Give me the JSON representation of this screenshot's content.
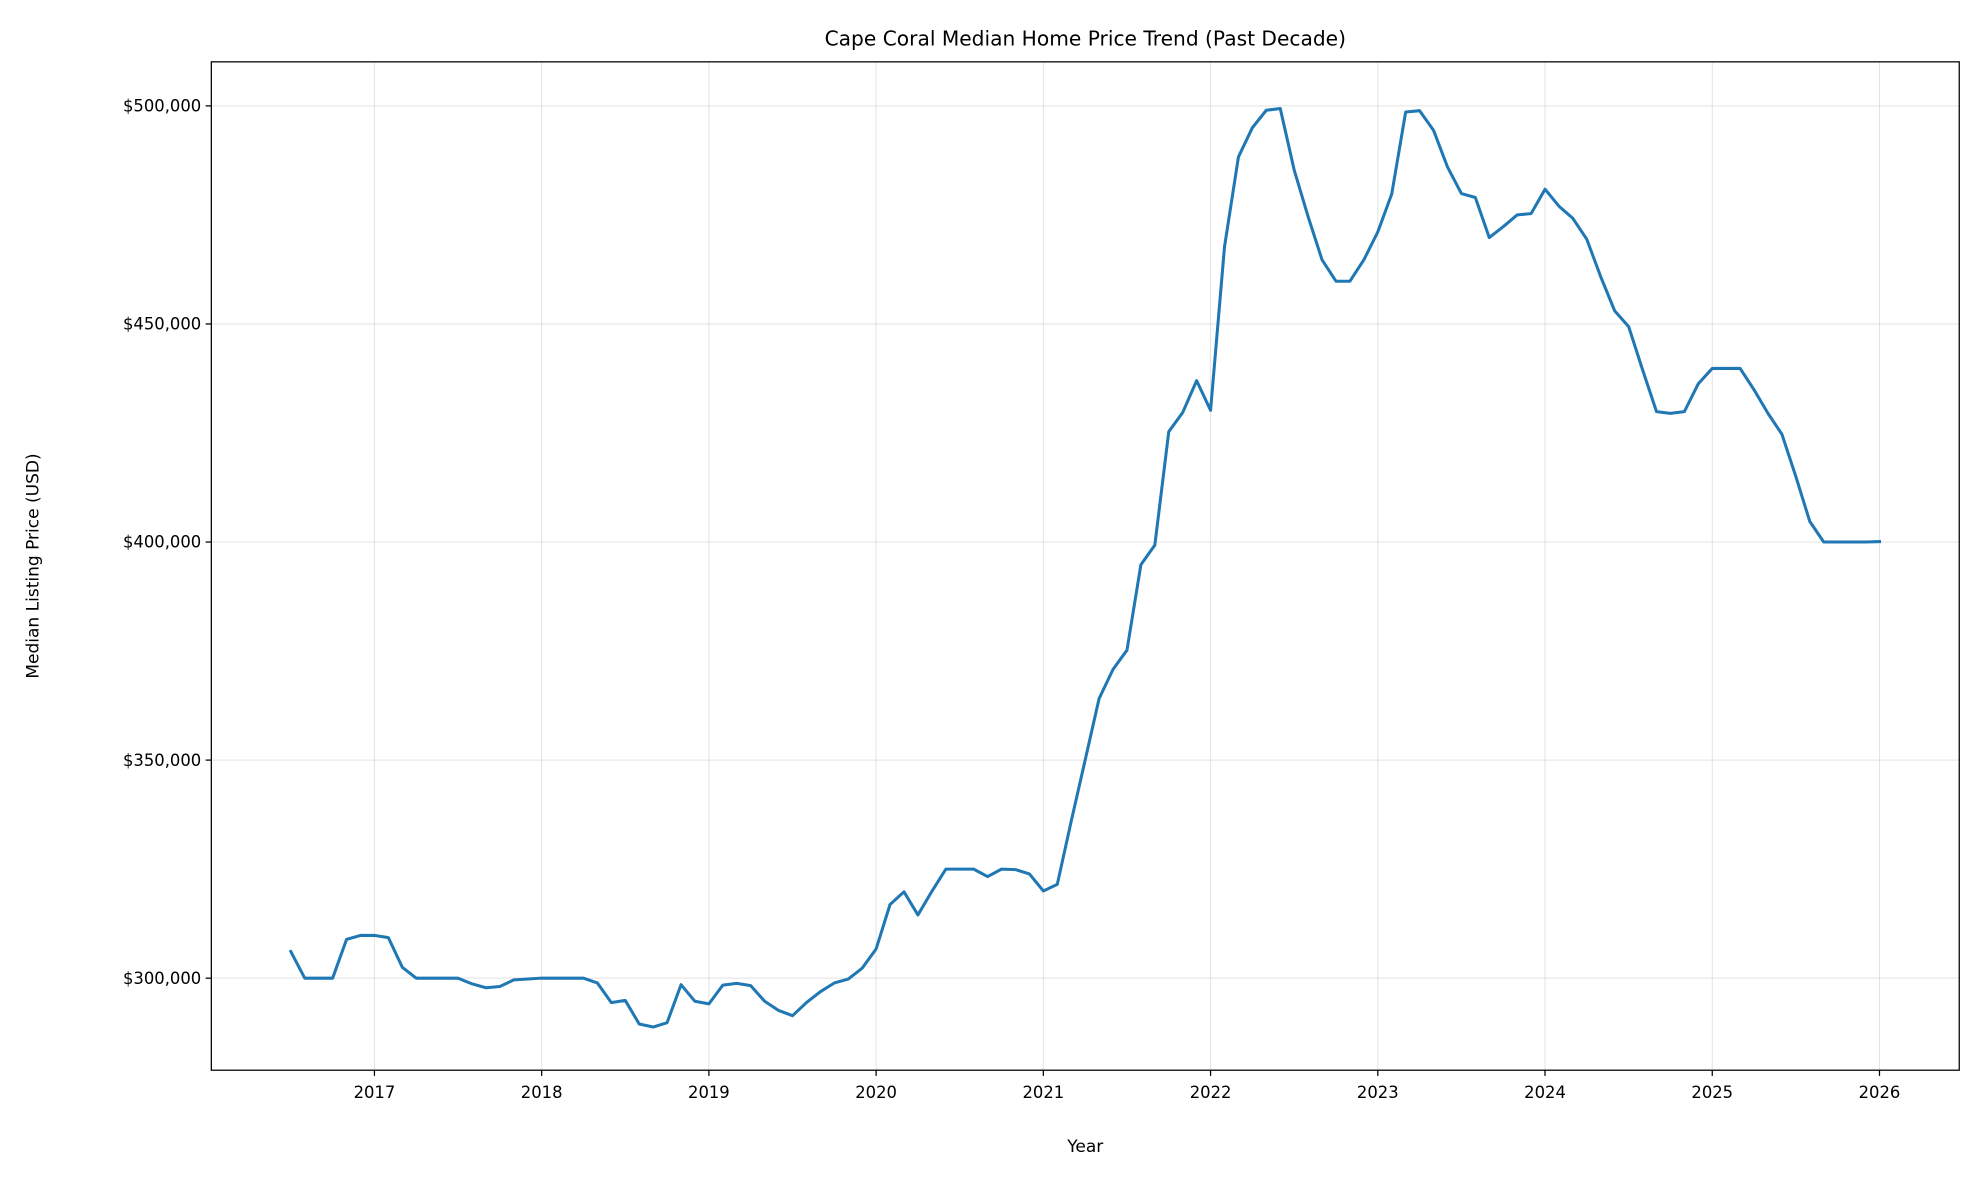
{
  "chart_data": {
    "type": "line",
    "title": "Cape Coral Median Home Price Trend (Past Decade)",
    "xlabel": "Year",
    "ylabel": "Median Listing Price (USD)",
    "xlim": [
      "2016-01-10",
      "2026-06-23"
    ],
    "ylim": [
      278900,
      510100
    ],
    "grid": true,
    "line_color": "#1f77b4",
    "x_ticks": [
      2017,
      2018,
      2019,
      2020,
      2021,
      2022,
      2023,
      2024,
      2025,
      2026
    ],
    "x_tick_labels": [
      "2017",
      "2018",
      "2019",
      "2020",
      "2021",
      "2022",
      "2023",
      "2024",
      "2025",
      "2026"
    ],
    "y_ticks": [
      300000,
      350000,
      400000,
      450000,
      500000
    ],
    "y_tick_labels": [
      "$300,000",
      "$350,000",
      "$400,000",
      "$450,000",
      "$500,000"
    ],
    "series": [
      {
        "x": [
          "2016-07",
          "2016-08",
          "2016-09",
          "2016-10",
          "2016-11",
          "2016-12",
          "2017-01",
          "2017-02",
          "2017-03",
          "2017-04",
          "2017-05",
          "2017-06",
          "2017-07",
          "2017-08",
          "2017-09",
          "2017-10",
          "2017-11",
          "2017-12",
          "2018-01",
          "2018-02",
          "2018-03",
          "2018-04",
          "2018-05",
          "2018-06",
          "2018-07",
          "2018-08",
          "2018-09",
          "2018-10",
          "2018-11",
          "2018-12",
          "2019-01",
          "2019-02",
          "2019-03",
          "2019-04",
          "2019-05",
          "2019-06",
          "2019-07",
          "2019-08",
          "2019-09",
          "2019-10",
          "2019-11",
          "2019-12",
          "2020-01",
          "2020-02",
          "2020-03",
          "2020-04",
          "2020-05",
          "2020-06",
          "2020-07",
          "2020-08",
          "2020-09",
          "2020-10",
          "2020-11",
          "2020-12",
          "2021-01",
          "2021-02",
          "2021-03",
          "2021-04",
          "2021-05",
          "2021-06",
          "2021-07",
          "2021-08",
          "2021-09",
          "2021-10",
          "2021-11",
          "2021-12",
          "2022-01",
          "2022-02",
          "2022-03",
          "2022-04",
          "2022-05",
          "2022-06",
          "2022-07",
          "2022-08",
          "2022-09",
          "2022-10",
          "2022-11",
          "2022-12",
          "2023-01",
          "2023-02",
          "2023-03",
          "2023-04",
          "2023-05",
          "2023-06",
          "2023-07",
          "2023-08",
          "2023-09",
          "2023-10",
          "2023-11",
          "2023-12",
          "2024-01",
          "2024-02",
          "2024-03",
          "2024-04",
          "2024-05",
          "2024-06",
          "2024-07",
          "2024-08",
          "2024-09",
          "2024-10",
          "2024-11",
          "2024-12",
          "2025-01",
          "2025-02",
          "2025-03",
          "2025-04",
          "2025-05",
          "2025-06",
          "2025-07",
          "2025-08",
          "2025-09",
          "2025-10",
          "2025-11",
          "2025-12",
          "2026-01"
        ],
        "y": [
          306100,
          300000,
          300000,
          300000,
          308900,
          309800,
          309800,
          309300,
          302500,
          300000,
          300000,
          300000,
          300000,
          298700,
          297800,
          298100,
          299600,
          299800,
          300000,
          300000,
          300000,
          300000,
          298900,
          294400,
          294900,
          289500,
          288800,
          289800,
          298500,
          294700,
          294100,
          298400,
          298800,
          298300,
          294700,
          292600,
          291400,
          294400,
          296900,
          298900,
          299800,
          302300,
          306700,
          316900,
          319800,
          314500,
          319900,
          325000,
          325000,
          325000,
          323300,
          325000,
          324900,
          323900,
          320000,
          321500,
          336000,
          350000,
          364100,
          370800,
          375200,
          394800,
          399300,
          425300,
          429700,
          437000,
          430200,
          467700,
          488300,
          495000,
          499000,
          499400,
          485300,
          474600,
          464700,
          459800,
          459800,
          464700,
          471100,
          479800,
          498600,
          498900,
          494400,
          486000,
          479900,
          479000,
          469800,
          472300,
          475000,
          475300,
          480900,
          477000,
          474200,
          469400,
          460800,
          453000,
          449400,
          439500,
          429900,
          429500,
          429900,
          436300,
          439800,
          439800,
          439800,
          434900,
          429500,
          424700,
          415000,
          404700,
          400000,
          400000,
          400000,
          400000,
          400100
        ]
      }
    ]
  }
}
